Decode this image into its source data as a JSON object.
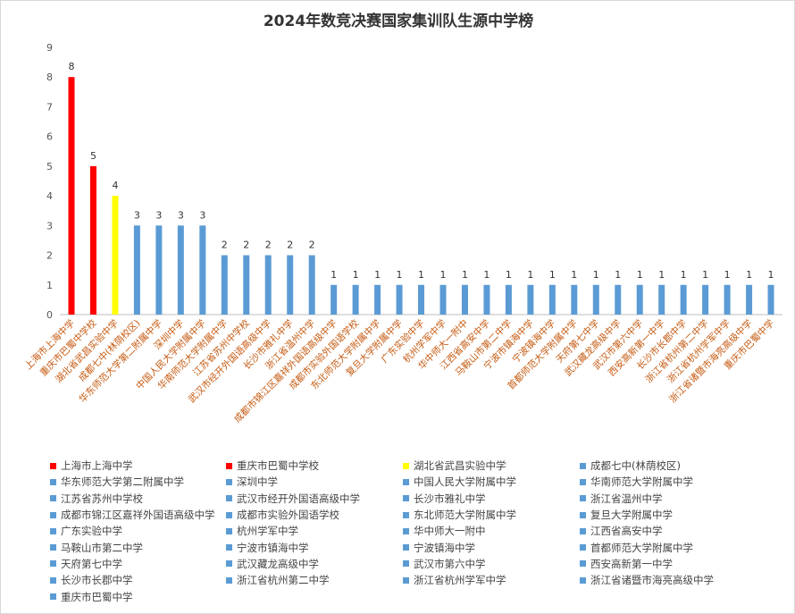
{
  "chart_data": {
    "type": "bar",
    "title": "2024年数竞决赛国家集训队生源中学榜",
    "xlabel": "",
    "ylabel": "",
    "ylim": [
      0,
      9
    ],
    "yticks": [
      0,
      1,
      2,
      3,
      4,
      5,
      6,
      7,
      8,
      9
    ],
    "grid": false,
    "legend_position": "bottom",
    "categories": [
      "上海市上海中学",
      "重庆市巴蜀中学校",
      "湖北省武昌实验中学",
      "成都七中(林荫校区)",
      "华东师范大学第二附属中学",
      "深圳中学",
      "中国人民大学附属中学",
      "华南师范大学附属中学",
      "江苏省苏州中学校",
      "武汉市经开外国语高级中学",
      "长沙市雅礼中学",
      "浙江省温州中学",
      "成都市锦江区嘉祥外国语高级中学",
      "成都市实验外国语学校",
      "东北师范大学附属中学",
      "复旦大学附属中学",
      "广东实验中学",
      "杭州学军中学",
      "华中师大一附中",
      "江西省高安中学",
      "马鞍山市第二中学",
      "宁波市镇海中学",
      "宁波镇海中学",
      "首都师范大学附属中学",
      "天府第七中学",
      "武汉藏龙高级中学",
      "武汉市第六中学",
      "西安高新第一中学",
      "长沙市长郡中学",
      "浙江省杭州第二中学",
      "浙江省杭州学军中学",
      "浙江省诸暨市海亮高级中学",
      "重庆市巴蜀中学"
    ],
    "values": [
      8,
      5,
      4,
      3,
      3,
      3,
      3,
      2,
      2,
      2,
      2,
      2,
      1,
      1,
      1,
      1,
      1,
      1,
      1,
      1,
      1,
      1,
      1,
      1,
      1,
      1,
      1,
      1,
      1,
      1,
      1,
      1,
      1
    ],
    "colors": [
      "#ff0000",
      "#ff0000",
      "#ffff00",
      "#5b9bd5"
    ]
  }
}
